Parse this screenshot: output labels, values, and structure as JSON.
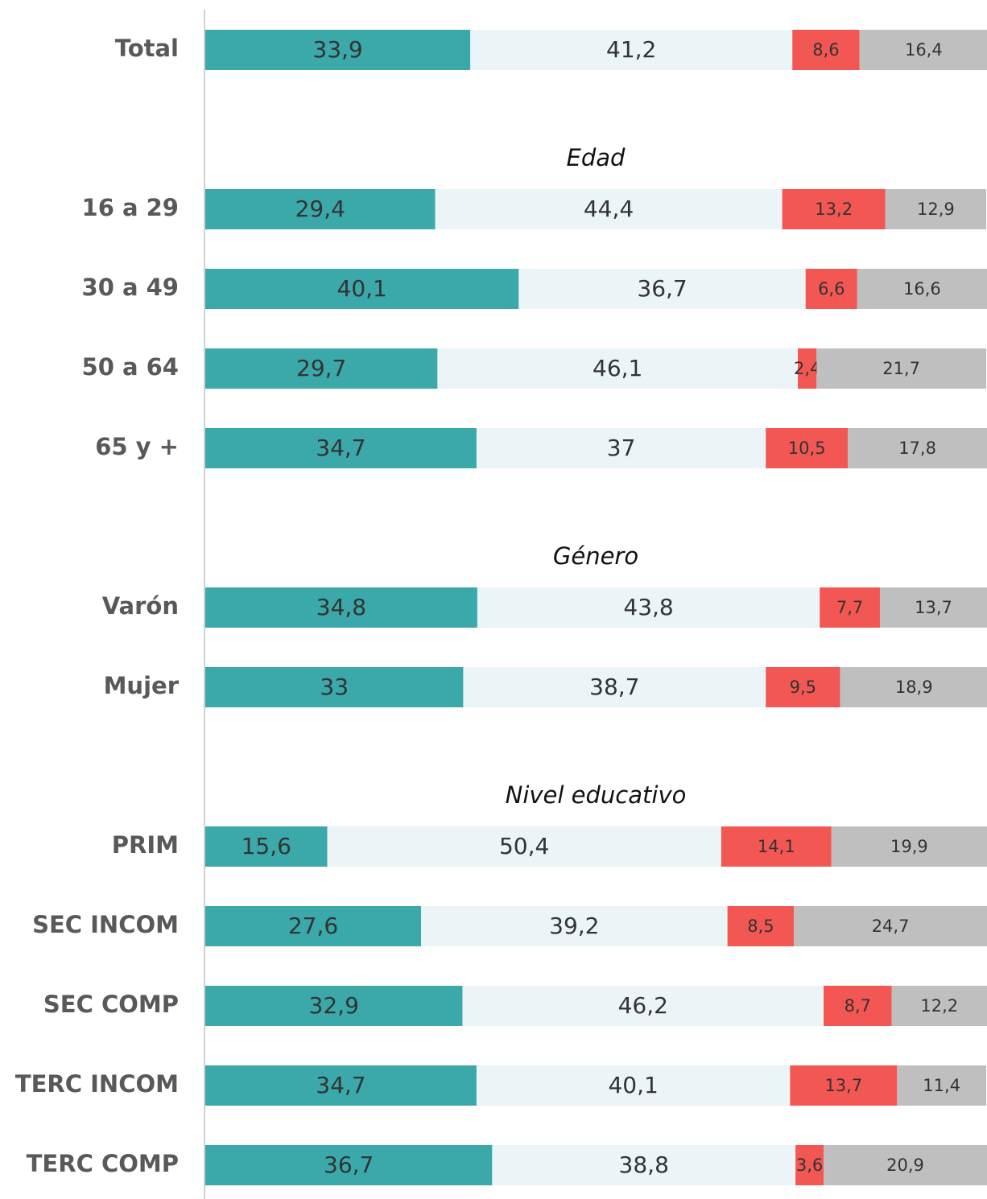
{
  "chart_data": {
    "type": "stacked-bar",
    "orientation": "horizontal",
    "categories": [
      "Total",
      null,
      "16 a 29",
      "30 a 49",
      "50 a 64",
      "65 y +",
      null,
      "Varón",
      "Mujer",
      null,
      "PRIM",
      "SEC INCOM",
      "SEC COMP",
      "TERC INCOM",
      "TERC COMP"
    ],
    "group_labels": [
      null,
      "Edad",
      null,
      null,
      null,
      null,
      "Género",
      null,
      null,
      "Nivel educativo",
      null,
      null,
      null,
      null,
      null
    ],
    "xlim": [
      0,
      100
    ],
    "series": [
      {
        "color": "#3ba8a9",
        "values": [
          33.9,
          null,
          29.4,
          40.1,
          29.7,
          34.7,
          null,
          34.8,
          33,
          null,
          15.6,
          27.6,
          32.9,
          34.7,
          36.7
        ],
        "value_labels": [
          "33,9",
          null,
          "29,4",
          "40,1",
          "29,7",
          "34,7",
          null,
          "34,8",
          "33",
          null,
          "15,6",
          "27,6",
          "32,9",
          "34,7",
          "36,7"
        ]
      },
      {
        "color": "#ebf4f7",
        "values": [
          41.2,
          null,
          44.4,
          36.7,
          46.1,
          37,
          null,
          43.8,
          38.7,
          null,
          50.4,
          39.2,
          46.2,
          40.1,
          38.8
        ],
        "value_labels": [
          "41,2",
          null,
          "44,4",
          "36,7",
          "46,1",
          "37",
          null,
          "43,8",
          "38,7",
          null,
          "50,4",
          "39,2",
          "46,2",
          "40,1",
          "38,8"
        ]
      },
      {
        "color": "#f25753",
        "values": [
          8.6,
          null,
          13.2,
          6.6,
          2.4,
          10.5,
          null,
          7.7,
          9.5,
          null,
          14.1,
          8.5,
          8.7,
          13.7,
          3.6
        ],
        "value_labels": [
          "8,6",
          null,
          "13,2",
          "6,6",
          "2,4",
          "10,5",
          null,
          "7,7",
          "9,5",
          null,
          "14,1",
          "8,5",
          "8,7",
          "13,7",
          "3,6"
        ]
      },
      {
        "color": "#bfbfbf",
        "values": [
          16.4,
          null,
          12.9,
          16.6,
          21.7,
          17.8,
          null,
          13.7,
          18.9,
          null,
          19.9,
          24.7,
          12.2,
          11.4,
          20.9
        ],
        "value_labels": [
          "16,4",
          null,
          "12,9",
          "16,6",
          "21,7",
          "17,8",
          null,
          "13,7",
          "18,9",
          null,
          "19,9",
          "24,7",
          "12,2",
          "11,4",
          "20,9"
        ]
      }
    ]
  }
}
